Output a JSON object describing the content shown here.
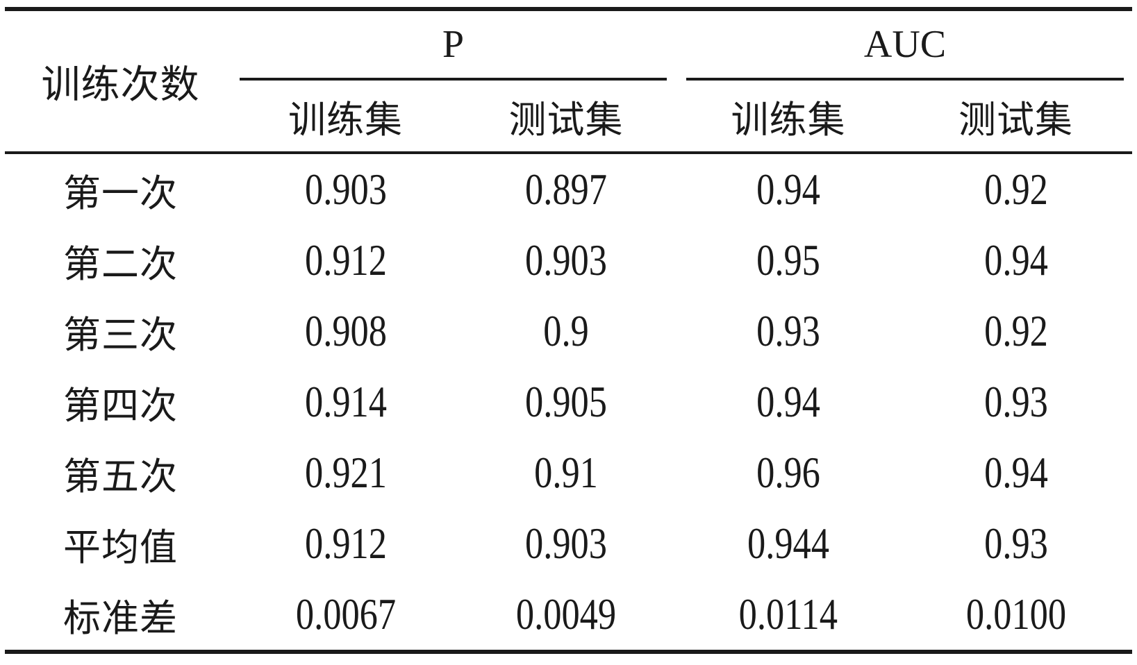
{
  "table": {
    "corner_header": "训练次数",
    "column_groups": [
      {
        "label": "P",
        "sub_columns": [
          "训练集",
          "测试集"
        ]
      },
      {
        "label": "AUC",
        "sub_columns": [
          "训练集",
          "测试集"
        ]
      }
    ],
    "rows": [
      {
        "label": "第一次",
        "values": [
          "0.903",
          "0.897",
          "0.94",
          "0.92"
        ]
      },
      {
        "label": "第二次",
        "values": [
          "0.912",
          "0.903",
          "0.95",
          "0.94"
        ]
      },
      {
        "label": "第三次",
        "values": [
          "0.908",
          "0.9",
          "0.93",
          "0.92"
        ]
      },
      {
        "label": "第四次",
        "values": [
          "0.914",
          "0.905",
          "0.94",
          "0.93"
        ]
      },
      {
        "label": "第五次",
        "values": [
          "0.921",
          "0.91",
          "0.96",
          "0.94"
        ]
      },
      {
        "label": "平均值",
        "values": [
          "0.912",
          "0.903",
          "0.944",
          "0.93"
        ]
      },
      {
        "label": "标准差",
        "values": [
          "0.0067",
          "0.0049",
          "0.0114",
          "0.0100"
        ]
      }
    ],
    "colors": {
      "text": "#1a1a1a",
      "rule": "#1a1a1a",
      "background": "#ffffff"
    }
  }
}
